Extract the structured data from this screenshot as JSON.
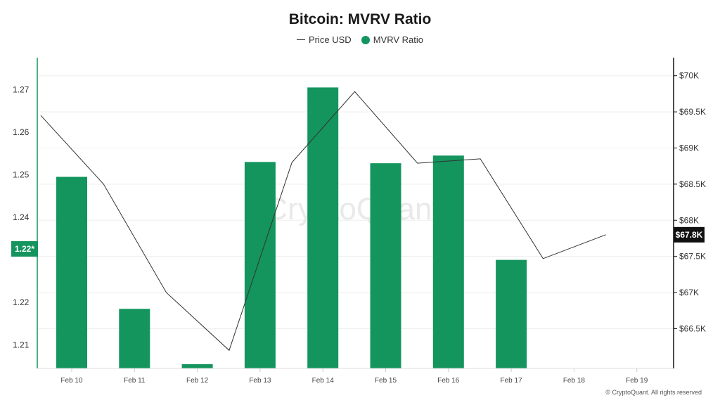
{
  "title": "Bitcoin: MVRV Ratio",
  "watermark": "CryptoQuant",
  "copyright": "© CryptoQuant. All rights reserved",
  "legend": {
    "price_label": "Price USD",
    "mvrv_label": "MVRV Ratio"
  },
  "colors": {
    "bar": "#14955e",
    "price_line": "#333333",
    "left_axis": "#14955e",
    "right_axis": "#111111",
    "grid": "#eeeeee"
  },
  "badges": {
    "left": "1.22*",
    "right": "$67.8K"
  },
  "chart_data": {
    "type": "bar",
    "title": "Bitcoin: MVRV Ratio",
    "categories": [
      "Feb 10",
      "Feb 11",
      "Feb 12",
      "Feb 13",
      "Feb 14",
      "Feb 15",
      "Feb 16",
      "Feb 17",
      "Feb 18",
      "Feb 19"
    ],
    "series": [
      {
        "name": "MVRV Ratio",
        "type": "bar",
        "axis": "left",
        "values": [
          1.2495,
          1.2185,
          1.2055,
          1.253,
          1.2705,
          1.2527,
          1.2545,
          1.23,
          null,
          null
        ]
      },
      {
        "name": "Price USD",
        "type": "line",
        "axis": "right",
        "values": [
          69450,
          68500,
          67000,
          66200,
          68800,
          69780,
          68790,
          68850,
          67470,
          67800
        ]
      }
    ],
    "left_axis": {
      "ticks": [
        1.21,
        1.22,
        1.24,
        1.25,
        1.26,
        1.27
      ],
      "tick_labels": [
        "1.21",
        "1.22",
        "1.24",
        "1.25",
        "1.26",
        "1.27"
      ],
      "range": [
        1.2045,
        1.2775
      ]
    },
    "right_axis": {
      "ticks": [
        66500,
        67000,
        67500,
        68000,
        68500,
        69000,
        69500,
        70000
      ],
      "tick_labels": [
        "$66.5K",
        "$67K",
        "$67.5K",
        "$68K",
        "$68.5K",
        "$69K",
        "$69.5K",
        "$70K"
      ],
      "range": [
        65950,
        70250
      ]
    },
    "grid": true,
    "legend_position": "top-center"
  }
}
